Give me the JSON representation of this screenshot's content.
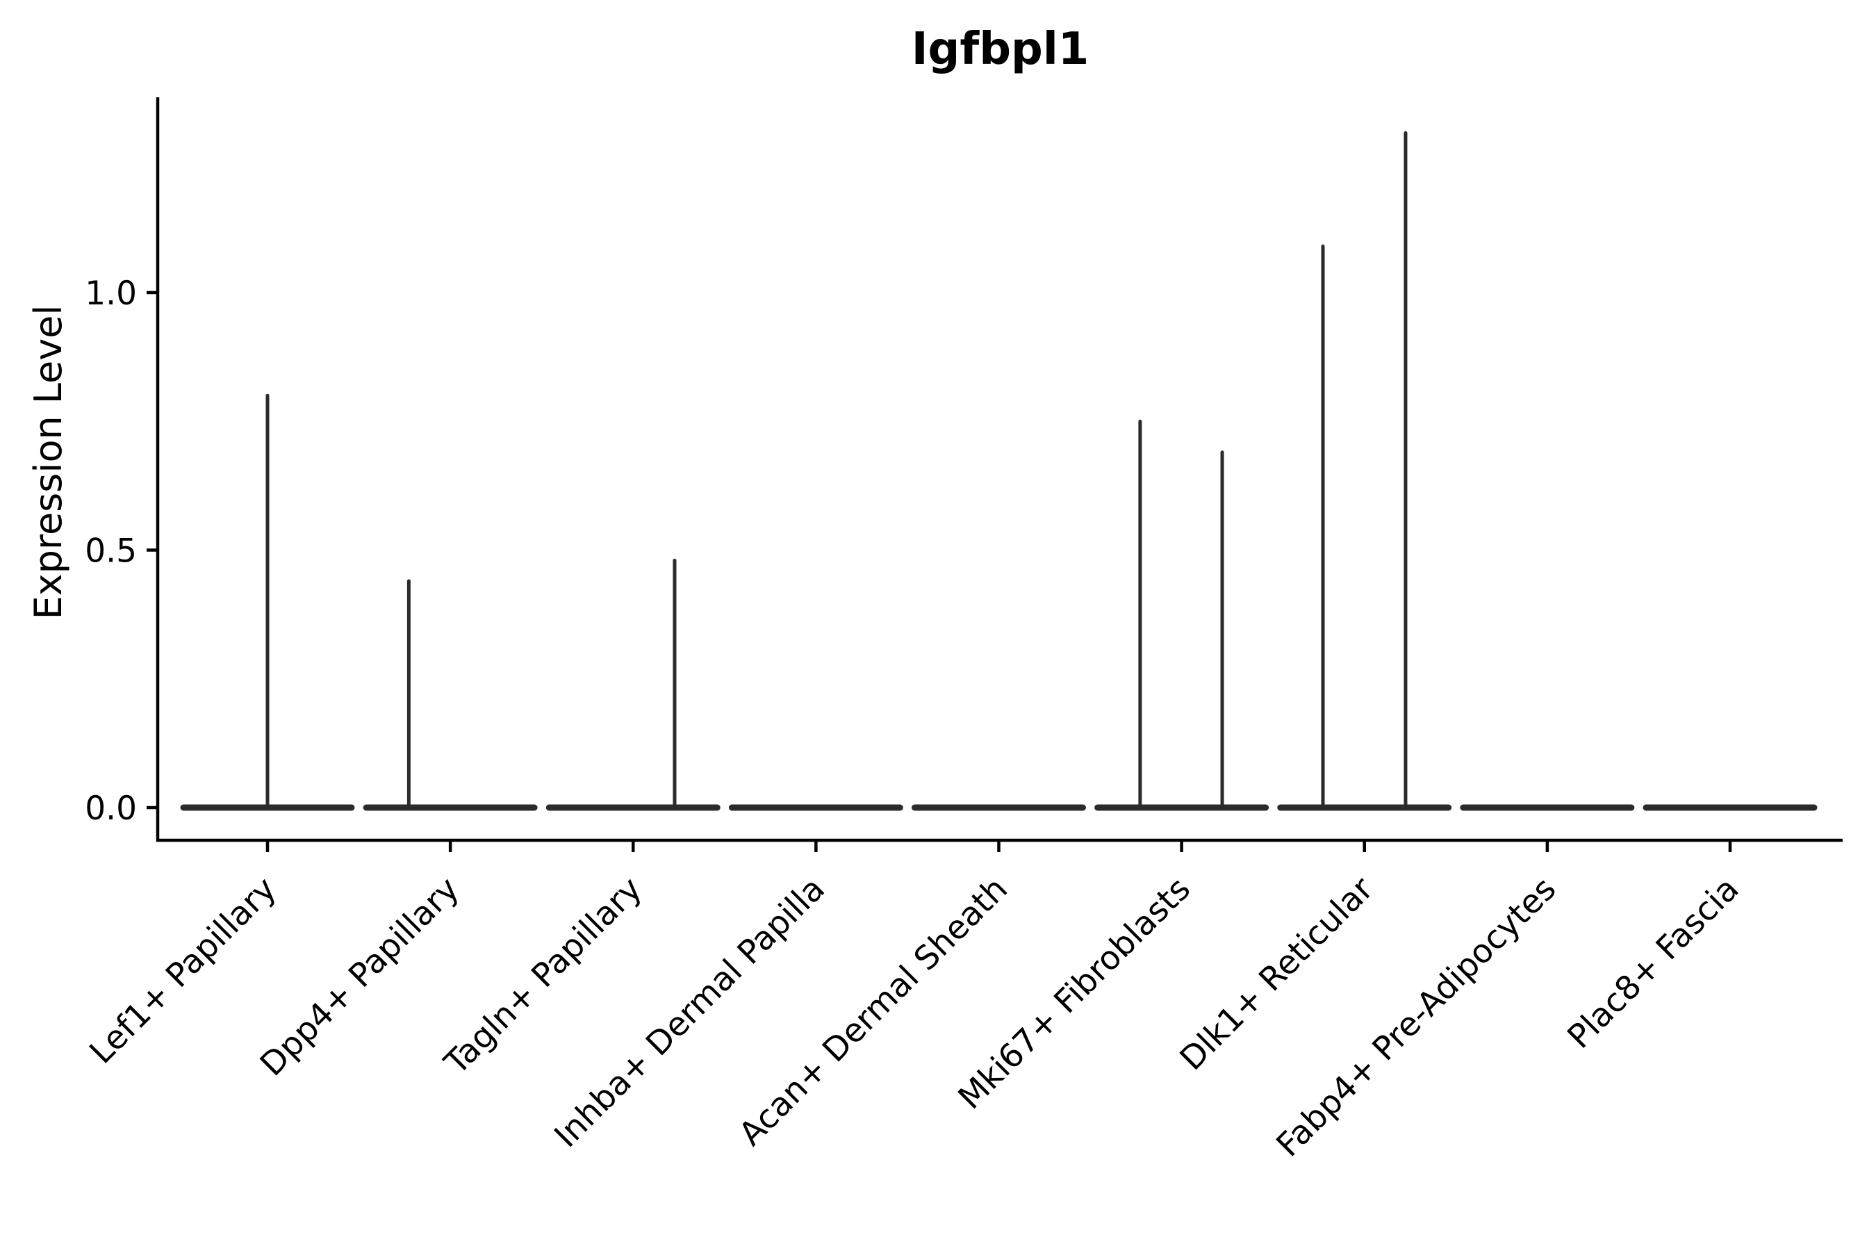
{
  "chart_data": {
    "type": "violin",
    "title": "Igfbpl1",
    "xlabel": "",
    "ylabel": "Expression Level",
    "yticks": [
      "0.0",
      "0.5",
      "1.0"
    ],
    "ytick_values": [
      0.0,
      0.5,
      1.0
    ],
    "ylim": [
      -0.063,
      1.38
    ],
    "grid": false,
    "legend": "none",
    "categories": [
      "Lef1+ Papillary",
      "Dpp4+ Papillary",
      "Tagln+ Papillary",
      "Inhba+ Dermal Papilla",
      "Acan+ Dermal Sheath",
      "Mki67+ Fibroblasts",
      "Dlk1+ Reticular",
      "Fabp4+ Pre-Adipocytes",
      "Plac8+ Fascia"
    ],
    "violins": [
      {
        "category": "Lef1+ Papillary",
        "bulk_value": 0.0,
        "spikes": [
          {
            "dx": 0.0,
            "max": 0.8
          }
        ]
      },
      {
        "category": "Dpp4+ Papillary",
        "bulk_value": 0.0,
        "spikes": [
          {
            "dx": -0.227,
            "max": 0.44
          }
        ]
      },
      {
        "category": "Tagln+ Papillary",
        "bulk_value": 0.0,
        "spikes": [
          {
            "dx": 0.227,
            "max": 0.48
          }
        ]
      },
      {
        "category": "Inhba+ Dermal Papilla",
        "bulk_value": 0.0,
        "spikes": []
      },
      {
        "category": "Acan+ Dermal Sheath",
        "bulk_value": 0.0,
        "spikes": []
      },
      {
        "category": "Mki67+ Fibroblasts",
        "bulk_value": 0.0,
        "spikes": [
          {
            "dx": -0.227,
            "max": 0.75
          },
          {
            "dx": 0.222,
            "max": 0.69
          }
        ]
      },
      {
        "category": "Dlk1+ Reticular",
        "bulk_value": 0.0,
        "spikes": [
          {
            "dx": -0.227,
            "max": 1.09
          },
          {
            "dx": 0.225,
            "max": 1.31
          }
        ]
      },
      {
        "category": "Fabp4+ Pre-Adipocytes",
        "bulk_value": 0.0,
        "spikes": []
      },
      {
        "category": "Plac8+ Fascia",
        "bulk_value": 0.0,
        "spikes": []
      }
    ],
    "colors": {
      "violin_line": "#2b2b2b",
      "axis": "#000000",
      "text": "#000000",
      "background": "#ffffff"
    }
  }
}
